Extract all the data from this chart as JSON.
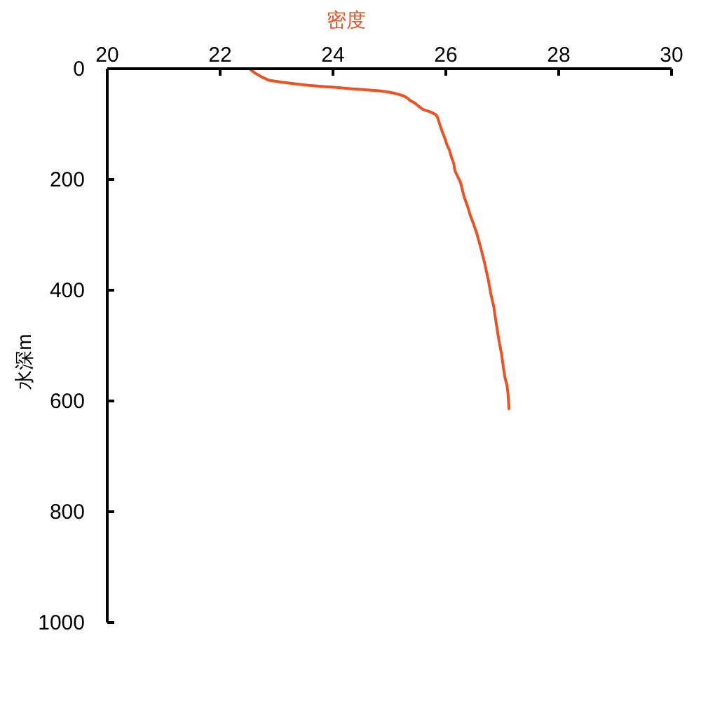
{
  "chart_data": {
    "type": "line",
    "xlabel": "密度",
    "ylabel": "水深m",
    "xlim": [
      20,
      30
    ],
    "xticks": [
      20,
      22,
      24,
      26,
      28,
      30
    ],
    "ylim": [
      1000,
      0
    ],
    "yticks": [
      0,
      200,
      400,
      600,
      800,
      1000
    ],
    "line_style": "solid",
    "series": [
      {
        "color": "#ee5222",
        "x": [
          22.52,
          22.62,
          22.74,
          22.87,
          23.07,
          23.3,
          23.57,
          23.8,
          24.07,
          24.3,
          24.56,
          24.82,
          24.98,
          25.12,
          25.25,
          25.32,
          25.36,
          25.45,
          25.52,
          25.6,
          25.73,
          25.82,
          25.85,
          25.89,
          25.93,
          25.98,
          26.02,
          26.06,
          26.1,
          26.14,
          26.16,
          26.26,
          26.32,
          26.39,
          26.43,
          26.49,
          26.55,
          26.61,
          26.68,
          26.75,
          26.8,
          26.85,
          26.89,
          26.94,
          26.99,
          27.02,
          27.05,
          27.08,
          27.1,
          27.11,
          27.12
        ],
        "values": [
          0,
          8,
          15,
          21,
          24,
          27,
          30,
          32,
          34,
          36,
          38,
          40,
          42,
          45,
          49,
          53,
          57,
          62,
          68,
          74,
          78,
          83,
          87,
          100,
          112,
          125,
          137,
          146,
          160,
          171,
          184,
          205,
          230,
          250,
          264,
          280,
          298,
          320,
          348,
          380,
          408,
          430,
          458,
          490,
          517,
          540,
          559,
          570,
          585,
          600,
          614
        ]
      }
    ]
  }
}
